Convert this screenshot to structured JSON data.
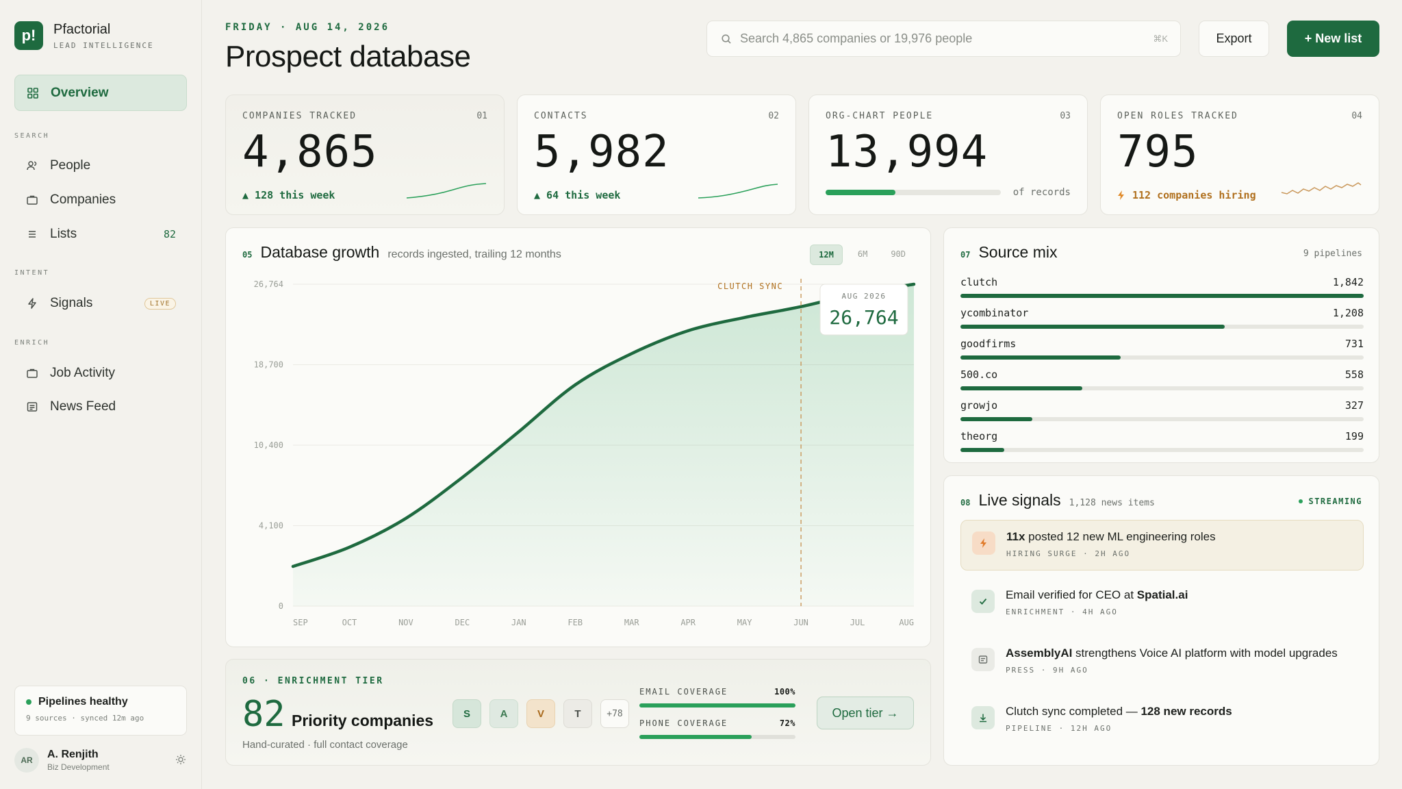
{
  "brand": {
    "logo": "p!",
    "name": "Pfactorial",
    "subtitle": "LEAD INTELLIGENCE"
  },
  "sidebar": {
    "active": {
      "label": "Overview",
      "icon": "grid-icon"
    },
    "sections": [
      {
        "title": "SEARCH"
      },
      {
        "title": "INTENT"
      },
      {
        "title": "ENRICH"
      }
    ],
    "items": [
      {
        "label": "People",
        "icon": "people-icon"
      },
      {
        "label": "Companies",
        "icon": "briefcase-icon"
      },
      {
        "label": "Lists",
        "icon": "list-icon",
        "count": "82"
      },
      {
        "label": "Signals",
        "icon": "bolt-icon",
        "badge": "LIVE"
      },
      {
        "label": "Job Activity",
        "icon": "briefcase-icon"
      },
      {
        "label": "News Feed",
        "icon": "newspaper-icon"
      }
    ],
    "health": {
      "title": "Pipelines healthy",
      "sub": "9 sources · synced 12m ago"
    },
    "user": {
      "initials": "AR",
      "name": "A. Renjith",
      "role": "Biz Development"
    }
  },
  "header": {
    "date": "FRIDAY · AUG 14, 2026",
    "title": "Prospect database",
    "search_placeholder": "Search 4,865 companies or 19,976 people",
    "search_shortcut": "⌘K",
    "export_label": "Export",
    "new_list_label": "+ New list"
  },
  "stats": [
    {
      "label": "COMPANIES TRACKED",
      "num": "01",
      "value": "4,865",
      "delta": "▲ 128 this week"
    },
    {
      "label": "CONTACTS",
      "num": "02",
      "value": "5,982",
      "delta": "▲ 64 this week"
    },
    {
      "label": "ORG-CHART PEOPLE",
      "num": "03",
      "value": "13,994",
      "progress": 0.4,
      "progress_label": "of records"
    },
    {
      "label": "OPEN ROLES TRACKED",
      "num": "04",
      "value": "795",
      "delta": "112 companies hiring"
    }
  ],
  "growth": {
    "num": "05",
    "title": "Database growth",
    "subtitle": "records ingested, trailing 12 months",
    "ranges": [
      "12M",
      "6M",
      "90D"
    ],
    "active_range": "12M",
    "annotation": "CLUTCH SYNC",
    "tooltip": {
      "label": "AUG 2026",
      "value": "26,764"
    }
  },
  "chart_data": {
    "type": "area",
    "categories": [
      "SEP",
      "OCT",
      "NOV",
      "DEC",
      "JAN",
      "FEB",
      "MAR",
      "APR",
      "MAY",
      "JUN",
      "JUL",
      "AUG"
    ],
    "values": [
      3300,
      4900,
      7300,
      10700,
      14500,
      18400,
      21000,
      22900,
      24000,
      24900,
      26000,
      26764
    ],
    "y_ticks": [
      "26,764",
      "18,700",
      "10,400",
      "4,100",
      "0"
    ],
    "ylim": [
      0,
      26764
    ],
    "marker": "JUN",
    "colors": {
      "line": "#1e6a3f",
      "marker": "#c9975a"
    }
  },
  "tier": {
    "kicker": "06 · ENRICHMENT TIER",
    "count": "82",
    "label": "Priority companies",
    "sub": "Hand-curated · full contact coverage",
    "chips": [
      "S",
      "A",
      "V",
      "T",
      "+78"
    ],
    "email": {
      "label": "EMAIL COVERAGE",
      "pct": "100%",
      "value": 1.0
    },
    "phone": {
      "label": "PHONE COVERAGE",
      "pct": "72%",
      "value": 0.72
    },
    "button": "Open tier →"
  },
  "source_mix": {
    "num": "07",
    "title": "Source mix",
    "pipelines": "9 pipelines",
    "rows": [
      {
        "name": "clutch",
        "value": "1,842",
        "frac": 1.0
      },
      {
        "name": "ycombinator",
        "value": "1,208",
        "frac": 0.656
      },
      {
        "name": "goodfirms",
        "value": "731",
        "frac": 0.397
      },
      {
        "name": "500.co",
        "value": "558",
        "frac": 0.303
      },
      {
        "name": "growjo",
        "value": "327",
        "frac": 0.178
      },
      {
        "name": "theorg",
        "value": "199",
        "frac": 0.108
      }
    ]
  },
  "signals": {
    "num": "08",
    "title": "Live signals",
    "count": "1,128 news items",
    "status": "STREAMING",
    "items": [
      {
        "icon": "bolt-icon",
        "bold1": "11x",
        "text": " posted 12 new ML engineering roles",
        "meta": "HIRING SURGE · 2H AGO"
      },
      {
        "icon": "check-icon",
        "text": "Email verified for CEO at ",
        "bold2": "Spatial.ai",
        "meta": "ENRICHMENT · 4H AGO"
      },
      {
        "icon": "doc-icon",
        "bold1": "AssemblyAI",
        "text": " strengthens Voice AI platform with model upgrades",
        "meta": "PRESS · 9H AGO"
      },
      {
        "icon": "download-icon",
        "text": "Clutch sync completed — ",
        "bold2": "128 new records",
        "meta": "PIPELINE · 12H AGO"
      }
    ]
  }
}
